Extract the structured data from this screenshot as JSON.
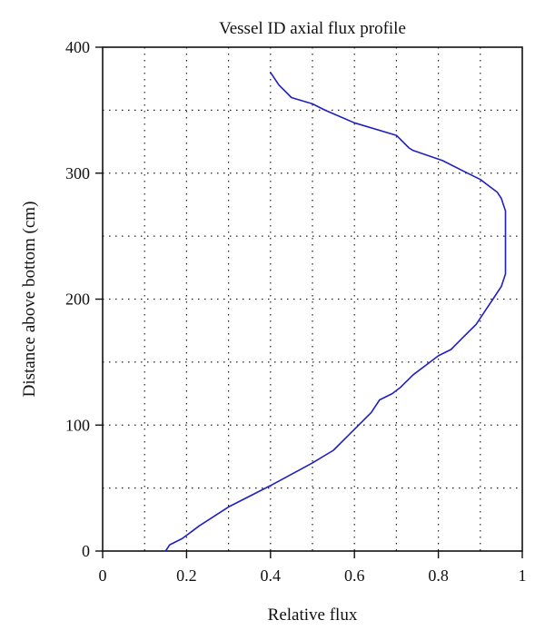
{
  "chart_data": {
    "type": "line",
    "title": "Vessel ID axial flux profile",
    "xlabel": "Relative flux",
    "ylabel": "Distance above bottom (cm)",
    "xlim": [
      0,
      1
    ],
    "ylim": [
      0,
      400
    ],
    "x_ticks": [
      0,
      0.2,
      0.4,
      0.6,
      0.8,
      1
    ],
    "x_tick_labels": [
      "0",
      "0.2",
      "0.4",
      "0.6",
      "0.8",
      "1"
    ],
    "y_ticks": [
      0,
      100,
      200,
      300,
      400
    ],
    "y_tick_labels": [
      "0",
      "100",
      "200",
      "300",
      "400"
    ],
    "grid": true,
    "grid_x_step": 0.1,
    "grid_y_step": 50,
    "line_color": "#2020c0",
    "series": [
      {
        "x": [
          0.15,
          0.16,
          0.19,
          0.23,
          0.3,
          0.4,
          0.5,
          0.55,
          0.58,
          0.61,
          0.64,
          0.66,
          0.69,
          0.71,
          0.74,
          0.78,
          0.8,
          0.83,
          0.86,
          0.89,
          0.91,
          0.93,
          0.95,
          0.96,
          0.96,
          0.95,
          0.94,
          0.92,
          0.9,
          0.87,
          0.81,
          0.74,
          0.73,
          0.7,
          0.6,
          0.53,
          0.5,
          0.45,
          0.42,
          0.4
        ],
        "y": [
          0,
          5,
          10,
          20,
          35,
          52,
          70,
          80,
          90,
          100,
          110,
          120,
          125,
          130,
          140,
          150,
          155,
          160,
          170,
          180,
          190,
          200,
          210,
          220,
          270,
          280,
          285,
          290,
          295,
          300,
          310,
          318,
          320,
          330,
          340,
          350,
          355,
          360,
          370,
          380
        ]
      }
    ]
  }
}
